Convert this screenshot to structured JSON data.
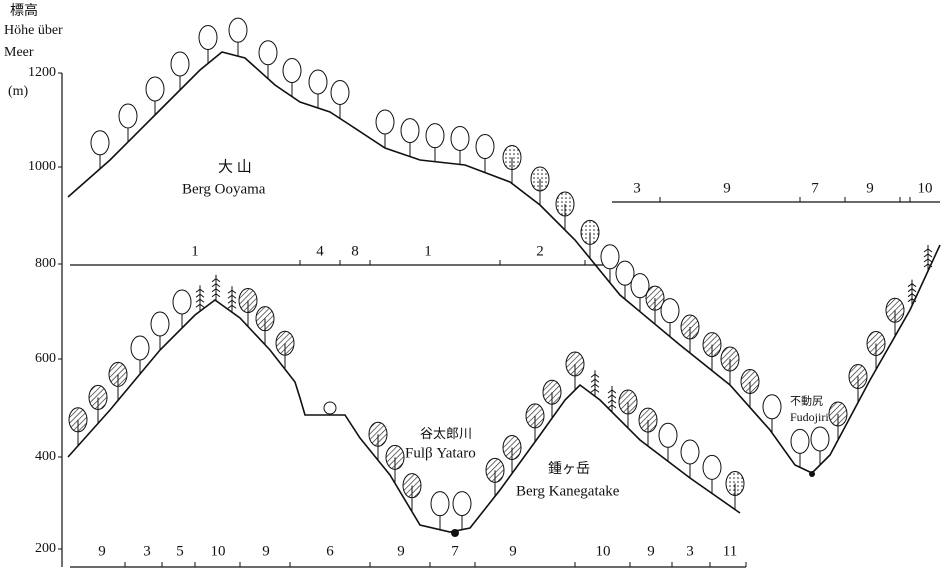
{
  "axis": {
    "title": [
      "標高",
      "Höhe über",
      "Meer"
    ],
    "unit": "(m)",
    "ticks": [
      1200,
      1000,
      800,
      600,
      400,
      200
    ]
  },
  "labels": {
    "ooyama_jp": "大 山",
    "ooyama": "Berg Ooyama",
    "yataro_jp": "谷太郎川",
    "yataro": "Fulβ Yataro",
    "kanegatake_jp": "鍾ヶ岳",
    "kanegatake": "Berg Kanegatake",
    "fudojiri_jp": "不動尻",
    "fudojiri": "Fudojiri"
  },
  "strips": {
    "upper": [
      1,
      4,
      8,
      1,
      2
    ],
    "right": [
      3,
      9,
      7,
      9,
      10
    ],
    "bottom": [
      9,
      3,
      5,
      10,
      9,
      6,
      9,
      7,
      9,
      10,
      9,
      3,
      11
    ]
  }
}
